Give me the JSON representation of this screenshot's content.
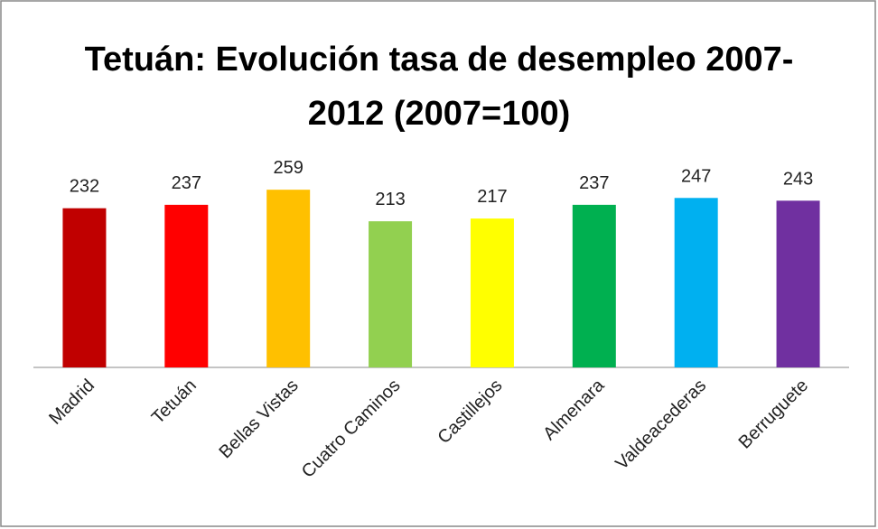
{
  "chart_data": {
    "type": "bar",
    "title": "Tetuán: Evolución tasa de desempleo 2007-2012 (2007=100)",
    "categories": [
      "Madrid",
      "Tetuán",
      "Bellas Vistas",
      "Cuatro Caminos",
      "Castillejos",
      "Almenara",
      "Valdeacederas",
      "Berruguete"
    ],
    "values": [
      232,
      237,
      259,
      213,
      217,
      237,
      247,
      243
    ],
    "colors": [
      "#c00000",
      "#ff0000",
      "#ffc000",
      "#92d050",
      "#ffff00",
      "#00b050",
      "#00b0f0",
      "#7030a0"
    ],
    "ylim": [
      0,
      300
    ]
  }
}
